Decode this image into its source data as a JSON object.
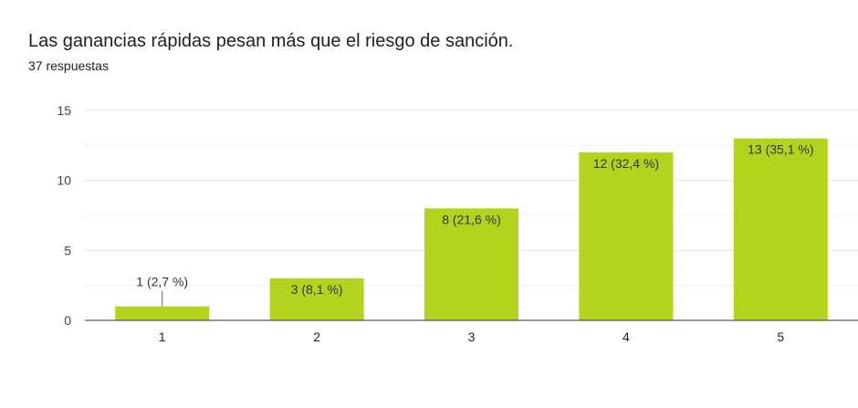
{
  "header": {
    "title": "Las ganancias rápidas pesan más que el riesgo de sanción.",
    "subtitle": "37 respuestas"
  },
  "chart_data": {
    "type": "bar",
    "categories": [
      "1",
      "2",
      "3",
      "4",
      "5"
    ],
    "values": [
      1,
      3,
      8,
      12,
      13
    ],
    "data_labels": [
      "1 (2,7 %)",
      "3 (8,1 %)",
      "8 (21,6 %)",
      "12 (32,4 %)",
      "13 (35,1 %)"
    ],
    "yticks": [
      "0",
      "5",
      "10",
      "15"
    ],
    "ylim": [
      0,
      15
    ],
    "grid": true,
    "legend": "none",
    "bar_color": "#b3d41f",
    "grid_color": "#e5e5e5",
    "axis_color": "#333333"
  }
}
